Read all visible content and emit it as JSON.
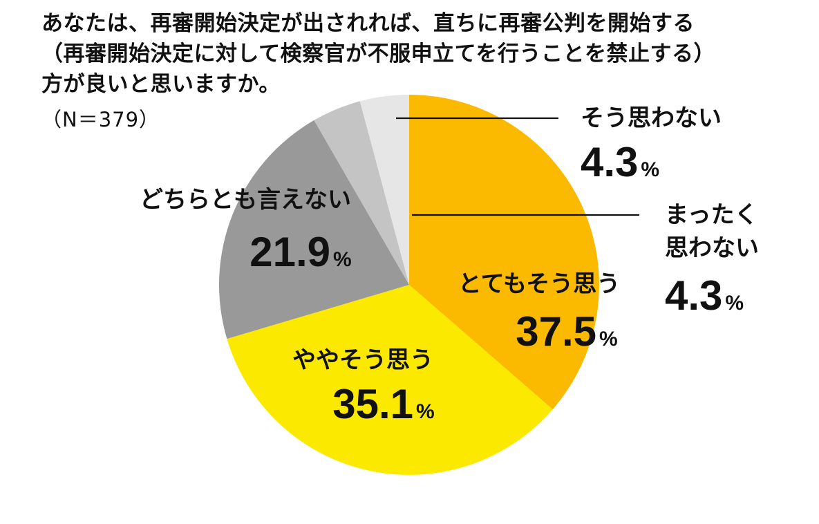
{
  "question": {
    "line1": "あなたは、再審開始決定が出されれば、直ちに再審公判を開始する",
    "line2": "（再審開始決定に対して検察官が不服申立てを行うことを禁止する）",
    "line3": "方が良いと思いますか。"
  },
  "sample_size": "（N＝379）",
  "chart_data": {
    "type": "pie",
    "start": "12 o'clock",
    "direction": "clockwise",
    "unit": "%",
    "slices": [
      {
        "label": "とてもそう思う",
        "value": 37.5,
        "color": "#FBBA00"
      },
      {
        "label": "ややそう思う",
        "value": 35.1,
        "color": "#FCE900"
      },
      {
        "label": "どちらとも言えない",
        "value": 21.9,
        "color": "#999999"
      },
      {
        "label": "まったく\n思わない",
        "value": 4.3,
        "color": "#C4C4C4"
      },
      {
        "label": "そう思わない",
        "value": 4.3,
        "color": "#E6E6E6"
      }
    ]
  }
}
